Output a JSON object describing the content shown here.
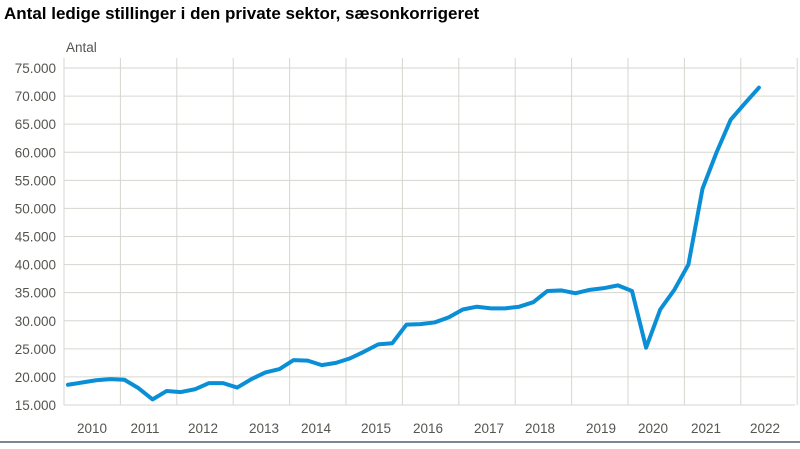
{
  "chart_data": {
    "type": "line",
    "title": "Antal ledige stillinger i den private sektor, sæsonkorrigeret",
    "ylabel": "Antal",
    "xlabel": "",
    "ylim": [
      15000,
      75000
    ],
    "yticks": [
      "15.000",
      "20.000",
      "25.000",
      "30.000",
      "35.000",
      "40.000",
      "45.000",
      "50.000",
      "55.000",
      "60.000",
      "65.000",
      "70.000",
      "75.000"
    ],
    "xticks": [
      "2010",
      "2011",
      "2012",
      "2013",
      "2014",
      "2015",
      "2016",
      "2017",
      "2018",
      "2019",
      "2020",
      "2021",
      "2022"
    ],
    "grid": true,
    "legend": "none",
    "line_color": "#0a8fd6",
    "x": [
      "2010K1",
      "2010K2",
      "2010K3",
      "2010K4",
      "2011K1",
      "2011K2",
      "2011K3",
      "2011K4",
      "2012K1",
      "2012K2",
      "2012K3",
      "2012K4",
      "2013K1",
      "2013K2",
      "2013K3",
      "2013K4",
      "2014K1",
      "2014K2",
      "2014K3",
      "2014K4",
      "2015K1",
      "2015K2",
      "2015K3",
      "2015K4",
      "2016K1",
      "2016K2",
      "2016K3",
      "2016K4",
      "2017K1",
      "2017K2",
      "2017K3",
      "2017K4",
      "2018K1",
      "2018K2",
      "2018K3",
      "2018K4",
      "2019K1",
      "2019K2",
      "2019K3",
      "2019K4",
      "2020K1",
      "2020K2",
      "2020K3",
      "2020K4",
      "2021K1",
      "2021K2",
      "2021K3",
      "2021K4",
      "2022K1",
      "2022K2"
    ],
    "series": [
      {
        "values": [
          18600,
          19000,
          19400,
          19600,
          19500,
          18000,
          16000,
          17500,
          17300,
          17800,
          18900,
          18900,
          18100,
          19600,
          20800,
          21400,
          23000,
          22900,
          22100,
          22500,
          23300,
          24500,
          25800,
          26000,
          29300,
          29400,
          29700,
          30600,
          32000,
          32500,
          32200,
          32200,
          32500,
          33300,
          35300,
          35400,
          34900,
          35500,
          35800,
          36300,
          35300,
          25200,
          32000,
          35500,
          40000,
          53500,
          60000,
          65800,
          68700,
          71500
        ]
      }
    ]
  }
}
